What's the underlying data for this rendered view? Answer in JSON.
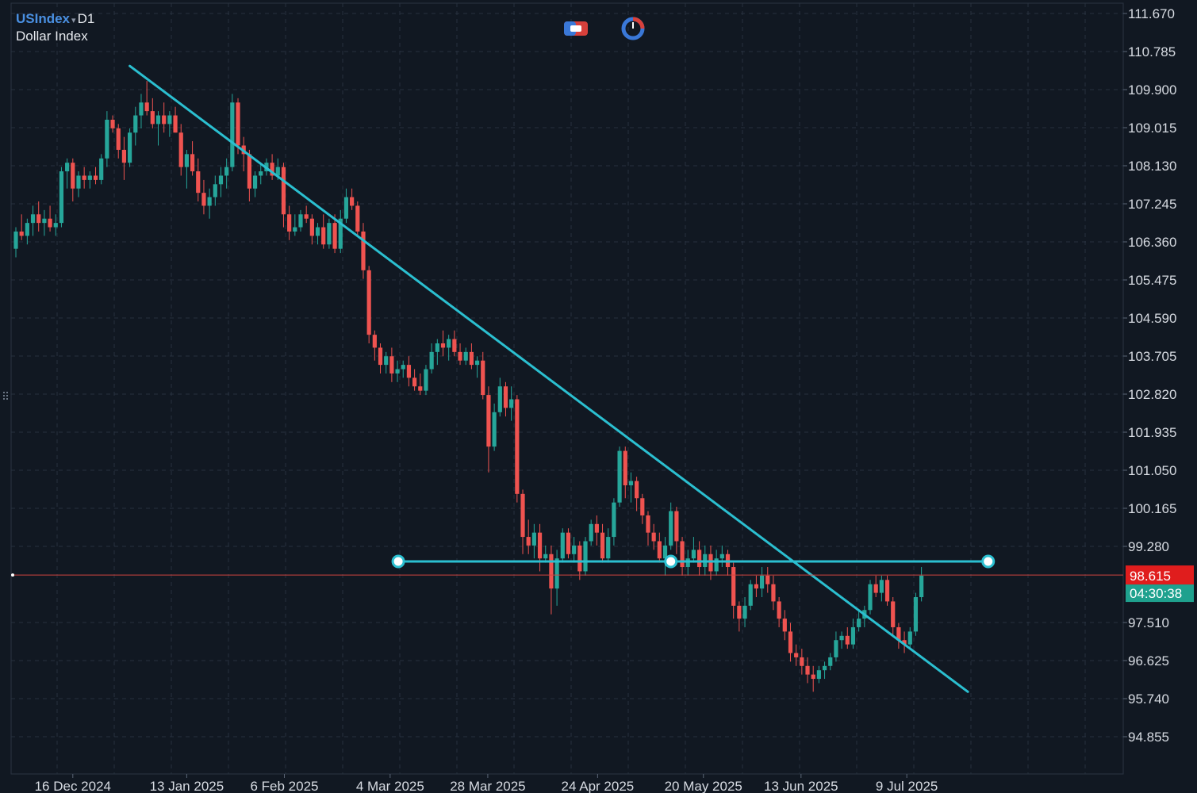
{
  "header": {
    "symbol": "USIndex",
    "caret": "▾",
    "timeframe": "D1",
    "description": "Dollar Index"
  },
  "toolbar": {
    "icons": [
      "magnet-icon",
      "clock-icon"
    ]
  },
  "colors": {
    "background": "#111822",
    "grid": "#27313f",
    "bull": "#26a69a",
    "bear": "#ef5350",
    "trendline": "#2bbfd0",
    "price_line": "#d2453f",
    "price_tag_bg": "#e01d1d",
    "countdown_bg": "#1fa18e",
    "axis_text": "#d7dbe2"
  },
  "price_axis": {
    "labels": [
      "111.670",
      "110.785",
      "109.900",
      "109.015",
      "108.130",
      "107.245",
      "106.360",
      "105.475",
      "104.590",
      "103.705",
      "102.820",
      "101.935",
      "101.050",
      "100.165",
      "99.280",
      "97.510",
      "96.625",
      "95.740",
      "94.855"
    ]
  },
  "time_axis": {
    "labels": [
      "16 Dec 2024",
      "13 Jan 2025",
      "6 Feb 2025",
      "4 Mar 2025",
      "28 Mar 2025",
      "24 Apr 2025",
      "20 May 2025",
      "13 Jun 2025",
      "9 Jul 2025"
    ]
  },
  "current_price": {
    "value": "98.615",
    "countdown": "04:30:38"
  },
  "drawings": {
    "trendline": {
      "from": [
        "2024-12-30",
        110.45
      ],
      "to": [
        "2025-07-24",
        95.9
      ]
    },
    "horizontal_line": {
      "price": 98.93,
      "anchors": [
        "2025-03-06",
        "2025-05-12",
        "2025-07-29"
      ]
    }
  },
  "chart_data": {
    "type": "candlestick",
    "symbol": "USIndex",
    "timeframe": "D1",
    "ylim": [
      94.0,
      111.9
    ],
    "x_tick_labels": [
      "16 Dec 2024",
      "13 Jan 2025",
      "6 Feb 2025",
      "4 Mar 2025",
      "28 Mar 2025",
      "24 Apr 2025",
      "20 May 2025",
      "13 Jun 2025",
      "9 Jul 2025"
    ],
    "candles": [
      [
        106.2,
        106.7,
        106.0,
        106.6
      ],
      [
        106.6,
        107.0,
        106.4,
        106.5
      ],
      [
        106.5,
        106.9,
        106.3,
        106.8
      ],
      [
        106.8,
        107.2,
        106.5,
        107.0
      ],
      [
        107.0,
        107.3,
        106.6,
        106.8
      ],
      [
        106.8,
        107.1,
        106.5,
        106.9
      ],
      [
        106.9,
        107.2,
        106.6,
        106.7
      ],
      [
        106.7,
        107.0,
        106.5,
        106.8
      ],
      [
        106.8,
        108.1,
        106.7,
        108.0
      ],
      [
        108.0,
        108.3,
        107.6,
        108.2
      ],
      [
        108.2,
        108.3,
        107.3,
        107.6
      ],
      [
        107.6,
        108.0,
        107.4,
        107.9
      ],
      [
        107.9,
        108.1,
        107.6,
        107.8
      ],
      [
        107.8,
        108.0,
        107.6,
        107.9
      ],
      [
        107.9,
        108.1,
        107.7,
        107.8
      ],
      [
        107.8,
        108.4,
        107.7,
        108.3
      ],
      [
        108.3,
        109.4,
        108.1,
        109.2
      ],
      [
        109.2,
        109.3,
        108.9,
        109.0
      ],
      [
        109.0,
        109.1,
        108.3,
        108.5
      ],
      [
        108.5,
        108.8,
        107.8,
        108.2
      ],
      [
        108.2,
        109.0,
        108.1,
        108.9
      ],
      [
        108.9,
        109.5,
        108.6,
        109.3
      ],
      [
        109.3,
        109.8,
        109.0,
        109.6
      ],
      [
        109.6,
        110.1,
        109.3,
        109.4
      ],
      [
        109.4,
        109.7,
        109.0,
        109.1
      ],
      [
        109.1,
        109.4,
        108.6,
        109.3
      ],
      [
        109.3,
        109.6,
        108.9,
        109.1
      ],
      [
        109.1,
        109.4,
        108.8,
        109.3
      ],
      [
        109.3,
        109.5,
        108.9,
        108.9
      ],
      [
        108.9,
        109.1,
        107.9,
        108.1
      ],
      [
        108.1,
        108.5,
        107.6,
        108.4
      ],
      [
        108.4,
        108.7,
        107.9,
        108.0
      ],
      [
        108.0,
        108.3,
        107.3,
        107.5
      ],
      [
        107.5,
        107.8,
        107.0,
        107.2
      ],
      [
        107.2,
        107.6,
        106.9,
        107.4
      ],
      [
        107.4,
        107.9,
        107.2,
        107.7
      ],
      [
        107.7,
        108.1,
        107.4,
        107.9
      ],
      [
        107.9,
        108.3,
        107.6,
        108.1
      ],
      [
        108.1,
        109.8,
        108.0,
        109.6
      ],
      [
        109.6,
        109.7,
        108.4,
        108.6
      ],
      [
        108.6,
        108.8,
        108.0,
        108.4
      ],
      [
        108.4,
        108.5,
        107.3,
        107.6
      ],
      [
        107.6,
        108.0,
        107.4,
        107.9
      ],
      [
        107.9,
        108.2,
        107.7,
        108.0
      ],
      [
        108.0,
        108.3,
        107.9,
        108.2
      ],
      [
        108.2,
        108.4,
        107.8,
        107.9
      ],
      [
        107.9,
        108.3,
        107.8,
        108.1
      ],
      [
        108.1,
        108.2,
        106.7,
        107.0
      ],
      [
        107.0,
        107.2,
        106.4,
        106.6
      ],
      [
        106.6,
        107.0,
        106.5,
        106.7
      ],
      [
        106.7,
        107.1,
        106.6,
        107.0
      ],
      [
        107.0,
        107.2,
        106.8,
        106.9
      ],
      [
        106.9,
        107.0,
        106.3,
        106.5
      ],
      [
        106.5,
        106.8,
        106.3,
        106.7
      ],
      [
        106.7,
        107.0,
        106.2,
        106.3
      ],
      [
        106.3,
        106.9,
        106.2,
        106.8
      ],
      [
        106.8,
        107.0,
        106.1,
        106.2
      ],
      [
        106.2,
        107.1,
        106.1,
        106.9
      ],
      [
        106.9,
        107.6,
        106.8,
        107.4
      ],
      [
        107.4,
        107.6,
        107.1,
        107.2
      ],
      [
        107.2,
        107.3,
        106.5,
        106.6
      ],
      [
        106.6,
        106.8,
        105.5,
        105.7
      ],
      [
        105.7,
        105.8,
        104.0,
        104.2
      ],
      [
        104.2,
        104.3,
        103.6,
        103.9
      ],
      [
        103.9,
        104.0,
        103.3,
        103.5
      ],
      [
        103.5,
        103.8,
        103.3,
        103.7
      ],
      [
        103.7,
        103.9,
        103.1,
        103.3
      ],
      [
        103.3,
        103.6,
        103.1,
        103.4
      ],
      [
        103.4,
        103.6,
        103.2,
        103.5
      ],
      [
        103.5,
        103.7,
        103.0,
        103.2
      ],
      [
        103.2,
        103.4,
        102.9,
        103.0
      ],
      [
        103.0,
        103.3,
        102.8,
        102.9
      ],
      [
        102.9,
        103.5,
        102.8,
        103.4
      ],
      [
        103.4,
        104.0,
        103.3,
        103.8
      ],
      [
        103.8,
        104.1,
        103.5,
        104.0
      ],
      [
        104.0,
        104.3,
        103.7,
        103.9
      ],
      [
        103.9,
        104.2,
        103.6,
        104.1
      ],
      [
        104.1,
        104.3,
        103.7,
        103.8
      ],
      [
        103.8,
        104.0,
        103.5,
        103.6
      ],
      [
        103.6,
        103.9,
        103.5,
        103.8
      ],
      [
        103.8,
        104.0,
        103.4,
        103.5
      ],
      [
        103.5,
        103.7,
        103.2,
        103.6
      ],
      [
        103.6,
        103.8,
        102.7,
        102.8
      ],
      [
        102.8,
        103.0,
        101.0,
        101.6
      ],
      [
        101.6,
        102.6,
        101.5,
        102.4
      ],
      [
        102.4,
        103.2,
        102.3,
        103.0
      ],
      [
        103.0,
        103.1,
        102.3,
        102.5
      ],
      [
        102.5,
        103.0,
        102.2,
        102.7
      ],
      [
        102.7,
        102.8,
        100.3,
        100.5
      ],
      [
        100.5,
        100.6,
        99.1,
        99.5
      ],
      [
        99.5,
        99.9,
        99.1,
        99.3
      ],
      [
        99.3,
        99.8,
        99.0,
        99.6
      ],
      [
        99.6,
        99.8,
        98.7,
        99.0
      ],
      [
        99.0,
        99.3,
        98.9,
        99.1
      ],
      [
        99.1,
        99.3,
        97.7,
        98.3
      ],
      [
        98.3,
        99.2,
        97.9,
        99.0
      ],
      [
        99.0,
        99.7,
        98.9,
        99.6
      ],
      [
        99.6,
        99.7,
        99.0,
        99.1
      ],
      [
        99.1,
        99.5,
        98.9,
        99.3
      ],
      [
        99.3,
        99.4,
        98.5,
        98.7
      ],
      [
        98.7,
        99.5,
        98.6,
        99.4
      ],
      [
        99.4,
        99.9,
        99.3,
        99.8
      ],
      [
        99.8,
        100.0,
        99.3,
        99.6
      ],
      [
        99.6,
        99.8,
        98.9,
        99.0
      ],
      [
        99.0,
        99.7,
        98.9,
        99.5
      ],
      [
        99.5,
        100.4,
        99.3,
        100.3
      ],
      [
        100.3,
        101.6,
        100.2,
        101.5
      ],
      [
        101.5,
        101.6,
        100.4,
        100.7
      ],
      [
        100.7,
        101.0,
        100.3,
        100.8
      ],
      [
        100.8,
        100.9,
        100.1,
        100.4
      ],
      [
        100.4,
        100.5,
        99.8,
        100.0
      ],
      [
        100.0,
        100.1,
        99.3,
        99.6
      ],
      [
        99.6,
        99.8,
        99.2,
        99.4
      ],
      [
        99.4,
        99.6,
        98.9,
        99.0
      ],
      [
        99.0,
        99.5,
        98.6,
        99.3
      ],
      [
        99.3,
        100.3,
        99.2,
        100.1
      ],
      [
        100.1,
        100.2,
        99.1,
        99.4
      ],
      [
        99.4,
        99.5,
        98.6,
        98.8
      ],
      [
        98.8,
        99.2,
        98.6,
        99.0
      ],
      [
        99.0,
        99.5,
        98.9,
        99.2
      ],
      [
        99.2,
        99.4,
        98.6,
        98.8
      ],
      [
        98.8,
        99.3,
        98.6,
        99.1
      ],
      [
        99.1,
        99.3,
        98.5,
        98.7
      ],
      [
        98.7,
        99.2,
        98.6,
        99.0
      ],
      [
        99.0,
        99.3,
        98.8,
        99.1
      ],
      [
        99.1,
        99.2,
        98.6,
        98.8
      ],
      [
        98.8,
        98.9,
        97.6,
        97.9
      ],
      [
        97.9,
        98.0,
        97.3,
        97.6
      ],
      [
        97.6,
        98.1,
        97.4,
        97.9
      ],
      [
        97.9,
        98.5,
        97.8,
        98.4
      ],
      [
        98.4,
        98.6,
        98.1,
        98.3
      ],
      [
        98.3,
        98.8,
        98.1,
        98.6
      ],
      [
        98.6,
        98.8,
        98.2,
        98.4
      ],
      [
        98.4,
        98.6,
        97.8,
        98.0
      ],
      [
        98.0,
        98.1,
        97.4,
        97.6
      ],
      [
        97.6,
        97.8,
        97.1,
        97.3
      ],
      [
        97.3,
        97.5,
        96.6,
        96.8
      ],
      [
        96.8,
        97.0,
        96.5,
        96.7
      ],
      [
        96.7,
        96.9,
        96.3,
        96.5
      ],
      [
        96.5,
        96.7,
        96.1,
        96.3
      ],
      [
        96.3,
        96.5,
        95.9,
        96.2
      ],
      [
        96.2,
        96.5,
        96.1,
        96.4
      ],
      [
        96.4,
        96.6,
        96.2,
        96.5
      ],
      [
        96.5,
        96.8,
        96.4,
        96.7
      ],
      [
        96.7,
        97.3,
        96.6,
        97.1
      ],
      [
        97.1,
        97.3,
        96.9,
        97.2
      ],
      [
        97.2,
        97.4,
        96.9,
        97.0
      ],
      [
        97.0,
        97.6,
        96.9,
        97.4
      ],
      [
        97.4,
        97.8,
        97.3,
        97.6
      ],
      [
        97.6,
        97.9,
        97.4,
        97.8
      ],
      [
        97.8,
        98.5,
        97.7,
        98.4
      ],
      [
        98.4,
        98.6,
        98.1,
        98.2
      ],
      [
        98.2,
        98.6,
        98.0,
        98.5
      ],
      [
        98.5,
        98.6,
        97.9,
        98.0
      ],
      [
        98.0,
        98.1,
        97.2,
        97.4
      ],
      [
        97.4,
        97.5,
        96.9,
        97.1
      ],
      [
        97.1,
        97.3,
        96.8,
        97.0
      ],
      [
        97.0,
        97.4,
        96.9,
        97.3
      ],
      [
        97.3,
        98.2,
        97.2,
        98.1
      ],
      [
        98.1,
        98.8,
        98.0,
        98.6
      ]
    ]
  }
}
